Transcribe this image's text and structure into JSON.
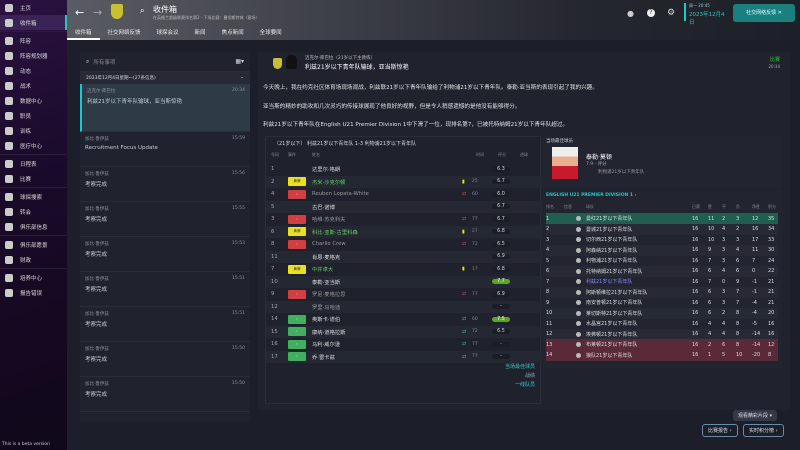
{
  "sidebar": {
    "items": [
      {
        "label": "主页"
      },
      {
        "label": "收件箱"
      },
      {
        "label": "阵容"
      },
      {
        "label": "阵容规划器"
      },
      {
        "label": "动态"
      },
      {
        "label": "战术"
      },
      {
        "label": "数据中心"
      },
      {
        "label": "职员"
      },
      {
        "label": "训练"
      },
      {
        "label": "医疗中心"
      },
      {
        "label": "日程表"
      },
      {
        "label": "比赛"
      },
      {
        "label": "球探搜索"
      },
      {
        "label": "转会"
      },
      {
        "label": "俱乐部信息"
      },
      {
        "label": "俱乐部愿景"
      },
      {
        "label": "财政"
      },
      {
        "label": "培养中心"
      },
      {
        "label": "报告错误"
      }
    ]
  },
  "header": {
    "title": "收件箱",
    "subtitle": "在英格兰超级联赛排名第2 - 下场比赛：曼彻斯特城（客场）",
    "day": "周一 20:45",
    "date": "2023年12月4日",
    "social_button": "社交网络反馈"
  },
  "tabs": [
    "收件箱",
    "社交网络反馈",
    "球探会议",
    "新闻",
    "焦点新闻",
    "全球要闻"
  ],
  "inbox": {
    "search_placeholder": "所有事项",
    "group": "2023年12月4日星期一(27条信息)",
    "messages": [
      {
        "from": "迈克尔·库巴拉",
        "subject": "利兹21岁以下青年队输球，亚当斯惊艳",
        "time": "20:34"
      },
      {
        "from": "加比·鲁伊兹",
        "subject": "Recruitment Focus Update",
        "time": "15:59"
      },
      {
        "from": "加比·鲁伊兹",
        "subject": "考察完成",
        "time": "15:56"
      },
      {
        "from": "加比·鲁伊兹",
        "subject": "考察完成",
        "time": "15:55"
      },
      {
        "from": "加比·鲁伊兹",
        "subject": "考察完成",
        "time": "15:53"
      },
      {
        "from": "加比·鲁伊兹",
        "subject": "考察完成",
        "time": "15:51"
      },
      {
        "from": "加比·鲁伊兹",
        "subject": "考察完成",
        "time": "15:51"
      },
      {
        "from": "加比·鲁伊兹",
        "subject": "考察完成",
        "time": "15:50"
      },
      {
        "from": "加比·鲁伊兹",
        "subject": "考察完成",
        "time": "15:50"
      }
    ]
  },
  "message": {
    "sender": "迈克尔·库巴拉（21岁以下主教练）",
    "subject": "利兹21岁以下青年队输球，亚当斯惊艳",
    "tag": "比赛",
    "time": "20:34",
    "paragraphs": [
      "今天晚上，我在约克社区体育场现场观战，利兹联21岁以下青年队输给了利物浦21岁以下青年队。泰勒·亚当斯的表现引起了我的兴趣。",
      "亚当斯的精妙的助攻和几次灵巧的传接球展现了他良好的视野，但是令人稍感遗憾的是他没有能够得分。",
      "利兹21岁以下青年队在English U21 Premier Division 1中下滑了一位，现排名第7，已被托特纳姆21岁以下青年队超过。"
    ]
  },
  "match": {
    "title": "（21岁以下） 利兹21岁以下青年队 1-3 利物浦21岁以下青年队",
    "headers": [
      "号码",
      "事件",
      "姓名",
      "时间",
      "评分",
      "进球"
    ],
    "players": [
      {
        "no": "1",
        "event": "",
        "name": "达里尔·格朗",
        "card": "",
        "time": "",
        "rating": "6.3"
      },
      {
        "no": "2",
        "event": "yellow",
        "name": "杰米·沙克尔顿",
        "card": "yellow",
        "time": "25",
        "rating": "6.7"
      },
      {
        "no": "4",
        "event": "off",
        "name": "Reuben Lopata-White",
        "card": "sub",
        "time": "60",
        "rating": "6.0"
      },
      {
        "no": "5",
        "event": "",
        "name": "古巴·诺博",
        "card": "",
        "time": "",
        "rating": "6.7"
      },
      {
        "no": "3",
        "event": "off",
        "name": "哈维·苏克利夫",
        "card": "sub",
        "time": "77",
        "rating": "6.7"
      },
      {
        "no": "6",
        "event": "yellow",
        "name": "科比·亚斯·古里科森",
        "card": "yellow",
        "time": "27",
        "rating": "6.8"
      },
      {
        "no": "8",
        "event": "off",
        "name": "Charlie Crew",
        "card": "sub",
        "time": "72",
        "rating": "6.5"
      },
      {
        "no": "11",
        "event": "",
        "name": "肖恩·麦格克",
        "card": "",
        "time": "",
        "rating": "6.9"
      },
      {
        "no": "7",
        "event": "yellow",
        "name": "中井卓大",
        "card": "yellow",
        "time": "17",
        "rating": "6.8"
      },
      {
        "no": "10",
        "event": "",
        "name": "泰勒·亚当斯",
        "card": "",
        "time": "",
        "rating": "7.7"
      },
      {
        "no": "9",
        "event": "off",
        "name": "罗尼·麦格拉思",
        "card": "sub",
        "time": "77",
        "rating": "6.9"
      },
      {
        "no": "12",
        "event": "",
        "name": "罗里·马哈迪",
        "card": "",
        "time": "",
        "rating": "-"
      },
      {
        "no": "14",
        "event": "on",
        "name": "奥斯卡·道伯",
        "card": "subin",
        "time": "60",
        "rating": "7.5"
      },
      {
        "no": "15",
        "event": "on",
        "name": "康纳·道格拉斯",
        "card": "subin",
        "time": "72",
        "rating": "6.5"
      },
      {
        "no": "16",
        "event": "on",
        "name": "马利·威尔逊",
        "card": "subin",
        "time": "77",
        "rating": "-"
      },
      {
        "no": "17",
        "event": "on",
        "name": "乔·雷卡兹",
        "card": "subin",
        "time": "77",
        "rating": "-"
      }
    ],
    "event_labels": {
      "yellow": "黄牌"
    },
    "links": [
      "当场最佳球员",
      "战绩",
      "一线队员"
    ]
  },
  "pom": {
    "label": "当场最佳球员",
    "name": "泰勒·莫顿",
    "rating": "7.9 - 评分",
    "club": "利物浦21岁以下青年队"
  },
  "league": {
    "title": "ENGLISH U21 PREMIER DIVISION 1 ›",
    "headers": [
      "排名",
      "信息",
      "球队",
      "已赛",
      "胜",
      "平",
      "负",
      "净胜",
      "积分"
    ],
    "rows": [
      [
        "1",
        "曼红21岁以下青年队",
        "16",
        "11",
        "2",
        "3",
        "12",
        "35"
      ],
      [
        "2",
        "曼城21岁以下青年队",
        "16",
        "10",
        "4",
        "2",
        "16",
        "34"
      ],
      [
        "3",
        "切尔西21岁以下青年队",
        "16",
        "10",
        "3",
        "3",
        "17",
        "33"
      ],
      [
        "4",
        "阿森纳21岁以下青年队",
        "16",
        "9",
        "3",
        "4",
        "11",
        "30"
      ],
      [
        "5",
        "利物浦21岁以下青年队",
        "16",
        "7",
        "3",
        "6",
        "7",
        "24"
      ],
      [
        "6",
        "托特纳姆21岁以下青年队",
        "16",
        "6",
        "4",
        "6",
        "0",
        "22"
      ],
      [
        "7",
        "利兹21岁以下青年队",
        "16",
        "7",
        "0",
        "9",
        "-1",
        "21"
      ],
      [
        "8",
        "阿斯顿维拉21岁以下青年队",
        "16",
        "6",
        "3",
        "7",
        "-1",
        "21"
      ],
      [
        "9",
        "南安普顿21岁以下青年队",
        "16",
        "6",
        "3",
        "7",
        "-4",
        "21"
      ],
      [
        "10",
        "莱切斯特21岁以下青年队",
        "16",
        "6",
        "2",
        "8",
        "-4",
        "20"
      ],
      [
        "11",
        "水晶宫21岁以下青年队",
        "16",
        "4",
        "4",
        "8",
        "-5",
        "16"
      ],
      [
        "12",
        "埃弗顿21岁以下青年队",
        "16",
        "4",
        "4",
        "8",
        "-14",
        "16"
      ],
      [
        "13",
        "布莱顿21岁以下青年队",
        "16",
        "2",
        "6",
        "8",
        "-14",
        "12"
      ],
      [
        "14",
        "狼队21岁以下青年队",
        "16",
        "1",
        "5",
        "10",
        "-20",
        "8"
      ]
    ]
  },
  "footer": {
    "highlights": "观看精彩片段",
    "report": "比赛报告",
    "analysis": "实时积分榜",
    "beta": "This is a beta version"
  },
  "colors": {
    "accent": "#1fc8c8",
    "promo": "#1f5f4f",
    "relegation": "#5a2a38",
    "own_team": "#8a8aff"
  }
}
